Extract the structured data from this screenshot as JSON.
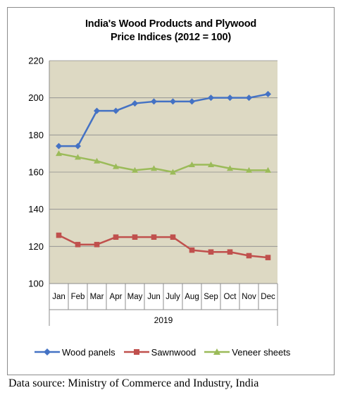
{
  "chart_data": {
    "type": "line",
    "title_lines": [
      "India's Wood Products and Plywood",
      "Price Indices (2012 = 100)"
    ],
    "categories": [
      "Jan",
      "Feb",
      "Mar",
      "Apr",
      "May",
      "Jun",
      "July",
      "Aug",
      "Sep",
      "Oct",
      "Nov",
      "Dec"
    ],
    "xlabel": "2019",
    "ylim": [
      100,
      220
    ],
    "yticks": [
      "100",
      "120",
      "140",
      "160",
      "180",
      "200",
      "220"
    ],
    "yticks_values": [
      100,
      120,
      140,
      160,
      180,
      200,
      220
    ],
    "grid": "horizontal",
    "legend_position": "bottom",
    "series": [
      {
        "name": "Wood panels",
        "color": "#4472C4",
        "marker": "diamond",
        "values": [
          174,
          174,
          193,
          193,
          197,
          198,
          198,
          198,
          200,
          200,
          200,
          202
        ]
      },
      {
        "name": "Sawnwood",
        "color": "#C0504D",
        "marker": "square",
        "values": [
          126,
          121,
          121,
          125,
          125,
          125,
          125,
          118,
          117,
          117,
          115,
          114
        ]
      },
      {
        "name": "Veneer sheets",
        "color": "#9BBB59",
        "marker": "triangle",
        "values": [
          170,
          168,
          166,
          163,
          161,
          162,
          160,
          164,
          164,
          162,
          161,
          161
        ]
      }
    ]
  },
  "plot_colors": {
    "background": "#DDD9C3",
    "gridline": "#8C8C8C",
    "axis": "#8C8C8C"
  },
  "source_text": "Data source: Ministry of Commerce and Industry, India"
}
